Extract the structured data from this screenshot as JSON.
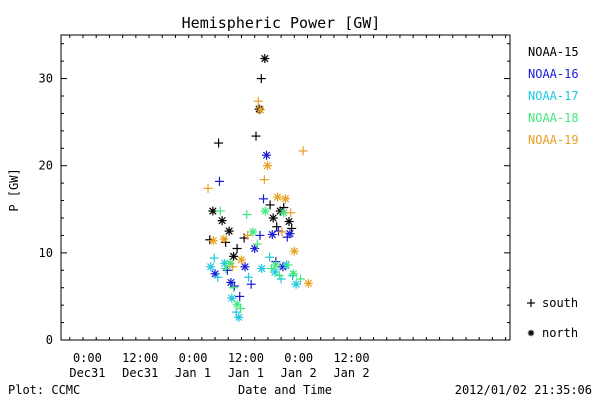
{
  "chart_data": {
    "type": "scatter",
    "title": "Hemispheric Power [GW]",
    "xlabel": "Date and Time",
    "ylabel": "P [GW]",
    "x_unit": "hours",
    "xlim": [
      -42,
      60
    ],
    "ylim": [
      0,
      35
    ],
    "y_ticks": [
      0,
      10,
      20,
      30
    ],
    "x_ticks": [
      {
        "value": -36,
        "line1": "0:00",
        "line2": "Dec31"
      },
      {
        "value": -24,
        "line1": "12:00",
        "line2": "Dec31"
      },
      {
        "value": -12,
        "line1": "0:00",
        "line2": "Jan 1"
      },
      {
        "value": 0,
        "line1": "12:00",
        "line2": "Jan 1"
      },
      {
        "value": 12,
        "line1": "0:00",
        "line2": "Jan 2"
      },
      {
        "value": 24,
        "line1": "12:00",
        "line2": "Jan 2"
      }
    ],
    "grid": false,
    "legend_position": "right",
    "series": [
      {
        "name": "NOAA-15",
        "color": "#000000",
        "points": [
          {
            "x": -8.2,
            "y": 11.5,
            "m": "south"
          },
          {
            "x": -7.5,
            "y": 14.8,
            "m": "north"
          },
          {
            "x": -6.2,
            "y": 22.6,
            "m": "south"
          },
          {
            "x": -5.4,
            "y": 13.7,
            "m": "north"
          },
          {
            "x": -4.6,
            "y": 11.2,
            "m": "south"
          },
          {
            "x": -3.8,
            "y": 12.5,
            "m": "north"
          },
          {
            "x": -2.8,
            "y": 9.6,
            "m": "north"
          },
          {
            "x": -2.0,
            "y": 10.5,
            "m": "south"
          },
          {
            "x": -0.4,
            "y": 11.7,
            "m": "south"
          },
          {
            "x": 2.3,
            "y": 23.4,
            "m": "south"
          },
          {
            "x": 3.0,
            "y": 26.5,
            "m": "north"
          },
          {
            "x": 3.5,
            "y": 30.0,
            "m": "south"
          },
          {
            "x": 4.3,
            "y": 32.3,
            "m": "north"
          },
          {
            "x": 5.5,
            "y": 15.5,
            "m": "south"
          },
          {
            "x": 6.2,
            "y": 14.0,
            "m": "north"
          },
          {
            "x": 7.0,
            "y": 13.0,
            "m": "south"
          },
          {
            "x": 7.8,
            "y": 14.8,
            "m": "north"
          },
          {
            "x": 8.6,
            "y": 15.2,
            "m": "south"
          },
          {
            "x": 9.8,
            "y": 13.6,
            "m": "north"
          },
          {
            "x": 10.4,
            "y": 12.8,
            "m": "south"
          }
        ]
      },
      {
        "name": "NOAA-16",
        "color": "#1a1ad6",
        "points": [
          {
            "x": -7.0,
            "y": 7.6,
            "m": "north"
          },
          {
            "x": -6.0,
            "y": 18.2,
            "m": "south"
          },
          {
            "x": -4.2,
            "y": 8.0,
            "m": "south"
          },
          {
            "x": -3.4,
            "y": 6.6,
            "m": "north"
          },
          {
            "x": -2.6,
            "y": 6.2,
            "m": "south"
          },
          {
            "x": -1.4,
            "y": 5.0,
            "m": "south"
          },
          {
            "x": -0.2,
            "y": 8.4,
            "m": "north"
          },
          {
            "x": 1.2,
            "y": 6.4,
            "m": "south"
          },
          {
            "x": 2.0,
            "y": 10.5,
            "m": "north"
          },
          {
            "x": 3.2,
            "y": 12.0,
            "m": "south"
          },
          {
            "x": 4.0,
            "y": 16.2,
            "m": "south"
          },
          {
            "x": 4.7,
            "y": 21.2,
            "m": "north"
          },
          {
            "x": 6.0,
            "y": 12.1,
            "m": "north"
          },
          {
            "x": 7.4,
            "y": 12.5,
            "m": "south"
          },
          {
            "x": 8.4,
            "y": 8.4,
            "m": "north"
          },
          {
            "x": 9.4,
            "y": 11.8,
            "m": "south"
          },
          {
            "x": 10.0,
            "y": 12.2,
            "m": "north"
          },
          {
            "x": 6.8,
            "y": 9.0,
            "m": "south"
          }
        ]
      },
      {
        "name": "NOAA-17",
        "color": "#1fc8e0",
        "points": [
          {
            "x": -8.0,
            "y": 8.4,
            "m": "north"
          },
          {
            "x": -7.2,
            "y": 9.4,
            "m": "south"
          },
          {
            "x": -6.4,
            "y": 7.2,
            "m": "south"
          },
          {
            "x": -4.8,
            "y": 8.8,
            "m": "north"
          },
          {
            "x": -3.2,
            "y": 4.8,
            "m": "north"
          },
          {
            "x": -2.2,
            "y": 3.2,
            "m": "south"
          },
          {
            "x": -1.6,
            "y": 2.6,
            "m": "north"
          },
          {
            "x": 0.6,
            "y": 7.2,
            "m": "south"
          },
          {
            "x": 3.6,
            "y": 8.2,
            "m": "north"
          },
          {
            "x": 5.4,
            "y": 9.5,
            "m": "south"
          },
          {
            "x": 6.6,
            "y": 7.8,
            "m": "north"
          },
          {
            "x": 8.0,
            "y": 7.0,
            "m": "south"
          },
          {
            "x": 9.2,
            "y": 8.6,
            "m": "north"
          },
          {
            "x": 10.6,
            "y": 7.4,
            "m": "south"
          },
          {
            "x": 11.4,
            "y": 6.4,
            "m": "north"
          }
        ]
      },
      {
        "name": "NOAA-18",
        "color": "#3ee87c",
        "points": [
          {
            "x": -5.8,
            "y": 14.8,
            "m": "south"
          },
          {
            "x": -4.6,
            "y": 8.2,
            "m": "south"
          },
          {
            "x": -3.6,
            "y": 8.8,
            "m": "north"
          },
          {
            "x": -2.8,
            "y": 6.0,
            "m": "south"
          },
          {
            "x": -2.0,
            "y": 4.1,
            "m": "north"
          },
          {
            "x": -1.2,
            "y": 3.6,
            "m": "south"
          },
          {
            "x": 0.2,
            "y": 14.4,
            "m": "south"
          },
          {
            "x": 1.6,
            "y": 12.4,
            "m": "north"
          },
          {
            "x": 2.6,
            "y": 11.0,
            "m": "south"
          },
          {
            "x": 4.4,
            "y": 14.8,
            "m": "north"
          },
          {
            "x": 5.8,
            "y": 8.2,
            "m": "south"
          },
          {
            "x": 6.8,
            "y": 8.6,
            "m": "north"
          },
          {
            "x": 7.6,
            "y": 7.4,
            "m": "south"
          },
          {
            "x": 8.6,
            "y": 14.6,
            "m": "north"
          },
          {
            "x": 9.6,
            "y": 8.6,
            "m": "south"
          },
          {
            "x": 10.8,
            "y": 7.6,
            "m": "north"
          },
          {
            "x": 12.4,
            "y": 7.0,
            "m": "south"
          }
        ]
      },
      {
        "name": "NOAA-19",
        "color": "#e8a020",
        "points": [
          {
            "x": -8.6,
            "y": 17.4,
            "m": "south"
          },
          {
            "x": -7.4,
            "y": 11.4,
            "m": "north"
          },
          {
            "x": -5.0,
            "y": 11.6,
            "m": "north"
          },
          {
            "x": -3.0,
            "y": 8.4,
            "m": "south"
          },
          {
            "x": -1.0,
            "y": 9.2,
            "m": "north"
          },
          {
            "x": 0.4,
            "y": 12.0,
            "m": "south"
          },
          {
            "x": 2.8,
            "y": 27.4,
            "m": "south"
          },
          {
            "x": 3.3,
            "y": 26.4,
            "m": "north"
          },
          {
            "x": 4.2,
            "y": 18.4,
            "m": "south"
          },
          {
            "x": 4.9,
            "y": 20.0,
            "m": "north"
          },
          {
            "x": 7.2,
            "y": 16.4,
            "m": "north"
          },
          {
            "x": 8.2,
            "y": 12.4,
            "m": "south"
          },
          {
            "x": 9.0,
            "y": 16.2,
            "m": "north"
          },
          {
            "x": 10.2,
            "y": 14.6,
            "m": "south"
          },
          {
            "x": 11.0,
            "y": 10.2,
            "m": "north"
          },
          {
            "x": 13.0,
            "y": 21.7,
            "m": "south"
          },
          {
            "x": 14.2,
            "y": 6.5,
            "m": "north"
          }
        ]
      }
    ],
    "marker_legend": [
      {
        "symbol": "+",
        "label": "south"
      },
      {
        "symbol": "*",
        "label": "north"
      }
    ]
  },
  "footer": {
    "left": "Plot: CCMC",
    "right": "2012/01/02 21:35:06"
  }
}
